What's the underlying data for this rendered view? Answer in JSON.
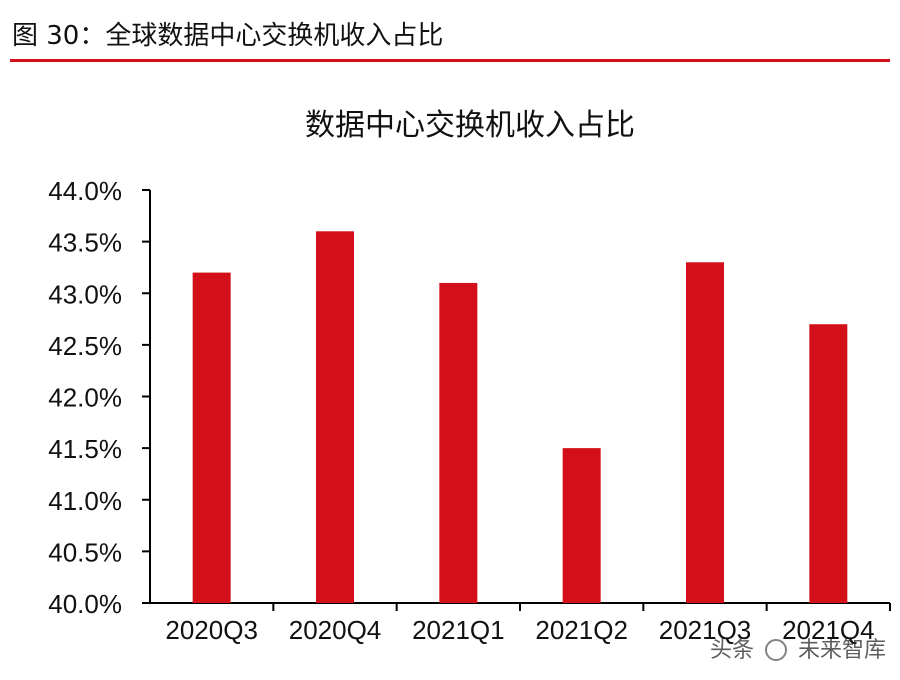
{
  "figure": {
    "title": "图 30：全球数据中心交换机收入占比",
    "accent_color": "#d31019"
  },
  "watermark": {
    "prefix": "头条",
    "icon": "wechat-bubble-icon",
    "name": "未来智库"
  },
  "chart_data": {
    "type": "bar",
    "title": "数据中心交换机收入占比",
    "categories": [
      "2020Q3",
      "2020Q4",
      "2021Q1",
      "2021Q2",
      "2021Q3",
      "2021Q4"
    ],
    "values": [
      43.2,
      43.6,
      43.1,
      41.5,
      43.3,
      42.7
    ],
    "unit": "%",
    "xlabel": "",
    "ylabel": "",
    "ylim": [
      40.0,
      44.0
    ],
    "yticks": [
      40.0,
      40.5,
      41.0,
      41.5,
      42.0,
      42.5,
      43.0,
      43.5,
      44.0
    ],
    "ytick_labels": [
      "40.0%",
      "40.5%",
      "41.0%",
      "41.5%",
      "42.0%",
      "42.5%",
      "43.0%",
      "43.5%",
      "44.0%"
    ],
    "bar_color": "#d31019",
    "grid": false,
    "legend": "none"
  }
}
